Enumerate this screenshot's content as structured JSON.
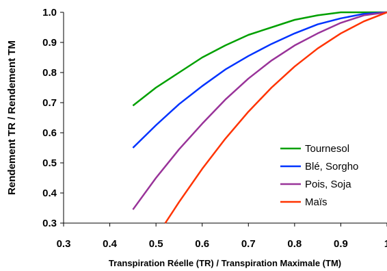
{
  "chart_data": {
    "type": "line",
    "xlabel": "Transpiration Réelle (TR) / Transpiration Maximale (TM)",
    "ylabel": "Rendement TR / Rendement TM",
    "xlim": [
      0.3,
      1.0
    ],
    "ylim": [
      0.3,
      1.0
    ],
    "xticks": [
      "0.3",
      "0.4",
      "0.5",
      "0.6",
      "0.7",
      "0.8",
      "0.9",
      "1"
    ],
    "yticks": [
      "0.3",
      "0.4",
      "0.5",
      "0.6",
      "0.7",
      "0.8",
      "0.9",
      "1.0"
    ],
    "grid": false,
    "legend_position": "bottom-right",
    "series": [
      {
        "name": "Tournesol",
        "color": "#00a000",
        "x": [
          0.45,
          0.5,
          0.55,
          0.6,
          0.65,
          0.7,
          0.75,
          0.8,
          0.85,
          0.9,
          0.95,
          1.0
        ],
        "y": [
          0.69,
          0.75,
          0.8,
          0.85,
          0.89,
          0.925,
          0.95,
          0.975,
          0.99,
          1.0,
          1.0,
          1.0
        ]
      },
      {
        "name": "Blé, Sorgho",
        "color": "#0033ff",
        "x": [
          0.45,
          0.5,
          0.55,
          0.6,
          0.65,
          0.7,
          0.75,
          0.8,
          0.85,
          0.9,
          0.95,
          1.0
        ],
        "y": [
          0.55,
          0.625,
          0.695,
          0.755,
          0.81,
          0.855,
          0.895,
          0.93,
          0.96,
          0.98,
          0.995,
          1.0
        ]
      },
      {
        "name": "Pois, Soja",
        "color": "#993399",
        "x": [
          0.45,
          0.5,
          0.55,
          0.6,
          0.65,
          0.7,
          0.75,
          0.8,
          0.85,
          0.9,
          0.95,
          1.0
        ],
        "y": [
          0.345,
          0.45,
          0.545,
          0.63,
          0.71,
          0.78,
          0.84,
          0.89,
          0.93,
          0.965,
          0.99,
          1.0
        ]
      },
      {
        "name": "Maïs",
        "color": "#ff3300",
        "x": [
          0.52,
          0.55,
          0.6,
          0.65,
          0.7,
          0.75,
          0.8,
          0.85,
          0.9,
          0.95,
          1.0
        ],
        "y": [
          0.3,
          0.37,
          0.48,
          0.58,
          0.67,
          0.75,
          0.82,
          0.88,
          0.93,
          0.97,
          1.0
        ]
      }
    ]
  }
}
